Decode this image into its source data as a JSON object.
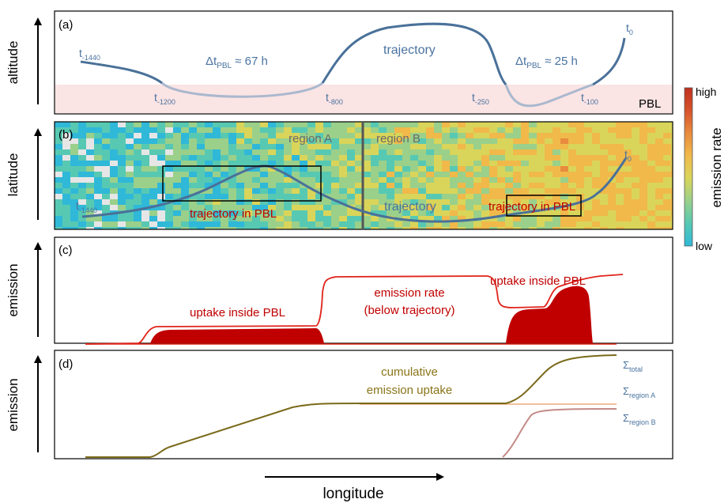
{
  "panels": {
    "a": {
      "tag": "(a)",
      "ylabel": "altitude"
    },
    "b": {
      "tag": "(b)",
      "ylabel": "latitude"
    },
    "c": {
      "tag": "(c)",
      "ylabel": "emission"
    },
    "d": {
      "tag": "(d)",
      "ylabel": "emission"
    }
  },
  "xlabel": "longitude",
  "panel_a": {
    "trajectory_label": "trajectory",
    "pbl_label": "PBL",
    "dt_left": {
      "main": "Δt",
      "sub": "PBL",
      "rest": " ≈ 67 h"
    },
    "dt_right": {
      "main": "Δt",
      "sub": "PBL",
      "rest": " ≈ 25 h"
    },
    "time_labels": [
      {
        "main": "t",
        "sub": "-1440"
      },
      {
        "main": "t",
        "sub": "-1200"
      },
      {
        "main": "t",
        "sub": "-800"
      },
      {
        "main": "t",
        "sub": "-250"
      },
      {
        "main": "t",
        "sub": "-100"
      },
      {
        "main": "t",
        "sub": "0"
      }
    ]
  },
  "panel_b": {
    "region_a": "region A",
    "region_b": "region B",
    "trajectory_label": "trajectory",
    "in_pbl_left": "trajectory in PBL",
    "in_pbl_right": "trajectory in PBL",
    "t_start": {
      "main": "t",
      "sub": "-1440"
    },
    "t_end": {
      "main": "t",
      "sub": "0"
    }
  },
  "panel_c": {
    "uptake_left": "uptake inside PBL",
    "uptake_right": "uptake inside PBL",
    "rate_line1": "emission rate",
    "rate_line2": "(below trajectory)"
  },
  "panel_d": {
    "cum_line1": "cumulative",
    "cum_line2": "emission uptake",
    "sum_total": {
      "main": "Σ",
      "sub": "total"
    },
    "sum_region_a": {
      "main": "Σ",
      "sub": "region A"
    },
    "sum_region_b": {
      "main": "Σ",
      "sub": "region B"
    }
  },
  "colorbar": {
    "title": "emission rate",
    "high": "high",
    "low": "low",
    "colors": [
      "#2fb8d8",
      "#57c9b3",
      "#9ad08a",
      "#d9d55a",
      "#f0b94a",
      "#e88b3e",
      "#d6532c",
      "#c0301f"
    ]
  },
  "colors": {
    "trajectory": "#4a7199",
    "trajectory_pbl": "#a9b8ce",
    "pbl_band": "#fbe4e4",
    "emission_red": "#e0241b",
    "uptake_fill": "#c00000",
    "cumulative": "#7a6a1a",
    "region_a_line": "#f0c09a",
    "region_b_line": "#c48a86",
    "text_blue": "#4a73a0",
    "text_red": "#c00000",
    "text_olive": "#8a7418",
    "region_text": "#6a6a6a",
    "divider": "#555555"
  }
}
